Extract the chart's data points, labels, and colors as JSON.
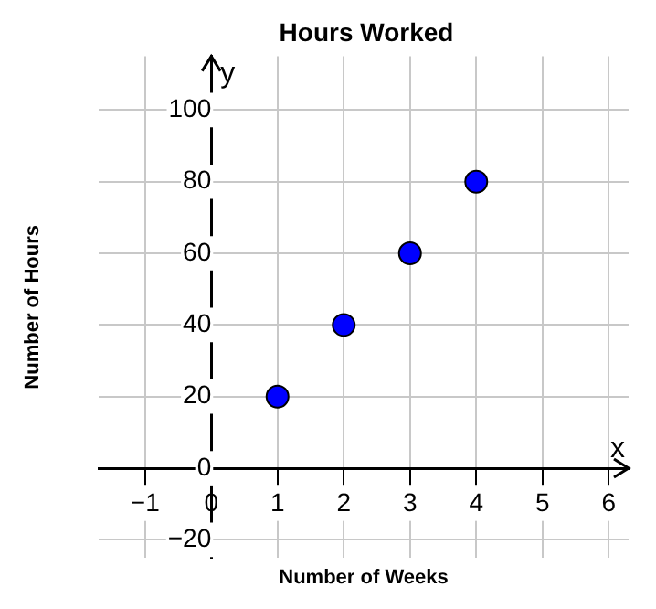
{
  "chart_data": {
    "type": "scatter",
    "title": "Hours Worked",
    "xlabel": "Number of Weeks",
    "ylabel": "Number of Hours",
    "annotations": [
      "x",
      "y"
    ],
    "x": [
      1,
      2,
      3,
      4
    ],
    "series": [
      {
        "color": "#0000ff",
        "values": [
          20,
          40,
          60,
          80
        ]
      }
    ],
    "xlim": [
      -1.7,
      6.3
    ],
    "xticks": [
      -1,
      0,
      1,
      2,
      3,
      4,
      5,
      6
    ],
    "ylim": [
      -25,
      115
    ],
    "yticks": [
      -20,
      0,
      20,
      40,
      60,
      80,
      100
    ],
    "grid": true,
    "marker": "circle",
    "legend": false
  }
}
